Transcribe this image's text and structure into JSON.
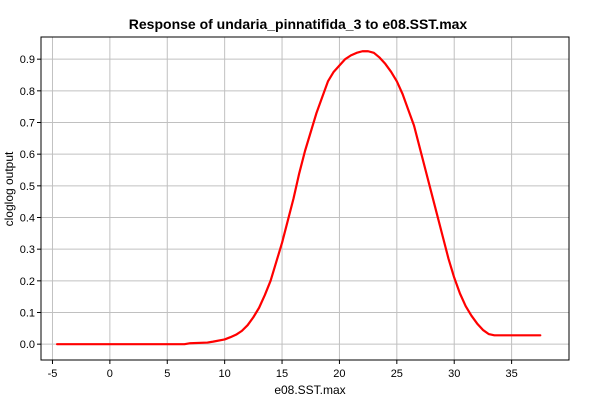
{
  "chart_data": {
    "type": "line",
    "title": "Response of undaria_pinnatifida_3 to e08.SST.max",
    "xlabel": "e08.SST.max",
    "ylabel": "cloglog output",
    "xlim": [
      -6.0,
      40.0
    ],
    "ylim": [
      -0.05,
      0.97
    ],
    "xticks": [
      -5,
      0,
      5,
      10,
      15,
      20,
      25,
      30,
      35
    ],
    "yticks": [
      0.0,
      0.1,
      0.2,
      0.3,
      0.4,
      0.5,
      0.6,
      0.7,
      0.8,
      0.9
    ],
    "ytick_labels": [
      "0.0",
      "0.1",
      "0.2",
      "0.3",
      "0.4",
      "0.5",
      "0.6",
      "0.7",
      "0.8",
      "0.9"
    ],
    "grid": true,
    "legend": "none",
    "series": [
      {
        "color": "#ff0000",
        "x": [
          -4.6,
          0,
          5,
          6.5,
          7.0,
          8.5,
          9.0,
          10.0,
          10.5,
          11.0,
          11.5,
          12.0,
          12.5,
          13.0,
          13.5,
          14.0,
          14.5,
          15.0,
          15.5,
          16.0,
          16.5,
          17.0,
          17.5,
          18.0,
          18.5,
          19.0,
          19.5,
          20.0,
          20.5,
          21.0,
          21.5,
          22.0,
          22.5,
          23.0,
          23.5,
          24.0,
          24.5,
          25.0,
          25.5,
          26.0,
          26.5,
          27.0,
          27.5,
          28.0,
          28.5,
          29.0,
          29.5,
          30.0,
          30.5,
          31.0,
          31.5,
          32.0,
          32.5,
          33.0,
          33.5,
          34.0,
          34.5,
          35.0,
          36.0,
          37.5
        ],
        "y": [
          0.0,
          0.0,
          0.0,
          0.0,
          0.003,
          0.005,
          0.008,
          0.015,
          0.022,
          0.03,
          0.042,
          0.06,
          0.085,
          0.115,
          0.155,
          0.2,
          0.26,
          0.32,
          0.39,
          0.46,
          0.54,
          0.61,
          0.67,
          0.73,
          0.78,
          0.83,
          0.86,
          0.88,
          0.9,
          0.912,
          0.92,
          0.925,
          0.925,
          0.92,
          0.905,
          0.885,
          0.86,
          0.83,
          0.79,
          0.74,
          0.69,
          0.62,
          0.55,
          0.48,
          0.41,
          0.34,
          0.27,
          0.21,
          0.16,
          0.12,
          0.09,
          0.065,
          0.045,
          0.032,
          0.028,
          0.028,
          0.028,
          0.028,
          0.028,
          0.028
        ]
      }
    ]
  }
}
